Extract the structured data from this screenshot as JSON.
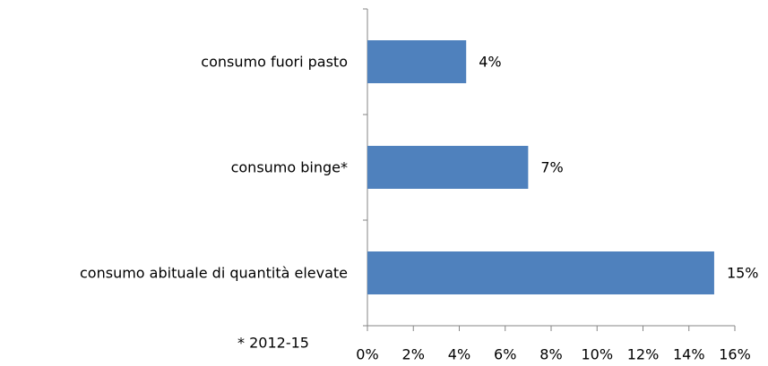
{
  "chart_data": {
    "type": "hbar",
    "categories": [
      "consumo fuori pasto",
      "consumo binge*",
      "consumo abituale di quantità elevate"
    ],
    "values": [
      4.3,
      7,
      15.1
    ],
    "value_labels": [
      "4%",
      "7%",
      "15%"
    ],
    "color": "#4f81bd",
    "xlim": [
      0,
      16
    ],
    "xticks": [
      {
        "value": 0,
        "label": "0%"
      },
      {
        "value": 2,
        "label": "2%"
      },
      {
        "value": 4,
        "label": "4%"
      },
      {
        "value": 6,
        "label": "6%"
      },
      {
        "value": 8,
        "label": "8%"
      },
      {
        "value": 10,
        "label": "10%"
      },
      {
        "value": 12,
        "label": "12%"
      },
      {
        "value": 14,
        "label": "14%"
      },
      {
        "value": 16,
        "label": "16%"
      }
    ],
    "annotation": "* 2012-15"
  }
}
